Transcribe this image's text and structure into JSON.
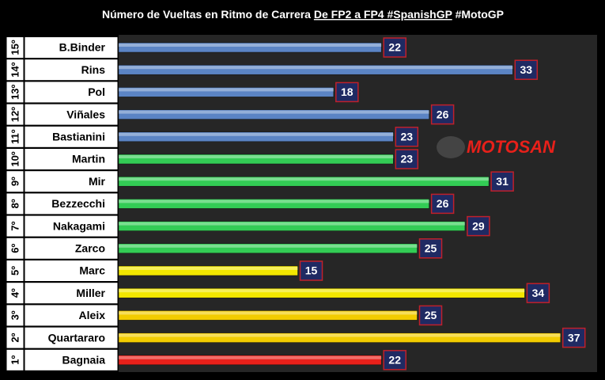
{
  "chart_data": {
    "type": "bar",
    "orientation": "horizontal",
    "title": "Número de Vueltas en Ritmo de Carrera",
    "title_underlined": "De FP2 a FP4 #SpanishGP",
    "title_suffix": "#MotoGP",
    "logo": "MOTOSAN",
    "ranks": [
      "15º",
      "14º",
      "13º",
      "12º",
      "11º",
      "10º",
      "9º",
      "8º",
      "7º",
      "6º",
      "5º",
      "4º",
      "3º",
      "2º",
      "1º"
    ],
    "categories": [
      "B.Binder",
      "Rins",
      "Pol",
      "Viñales",
      "Bastianini",
      "Martin",
      "Mir",
      "Bezzecchi",
      "Nakagami",
      "Zarco",
      "Marc",
      "Miller",
      "Aleix",
      "Quartararo",
      "Bagnaia"
    ],
    "values": [
      22,
      33,
      18,
      26,
      23,
      23,
      31,
      26,
      29,
      25,
      15,
      34,
      25,
      37,
      22
    ],
    "colors": [
      "#5b84c4",
      "#5b84c4",
      "#5b84c4",
      "#5b84c4",
      "#5b84c4",
      "#33cc55",
      "#33cc55",
      "#33cc55",
      "#33cc55",
      "#33cc55",
      "#f2e600",
      "#f2e600",
      "#f2cc00",
      "#f2cc00",
      "#e8201a"
    ],
    "xlim": [
      0,
      40
    ]
  }
}
